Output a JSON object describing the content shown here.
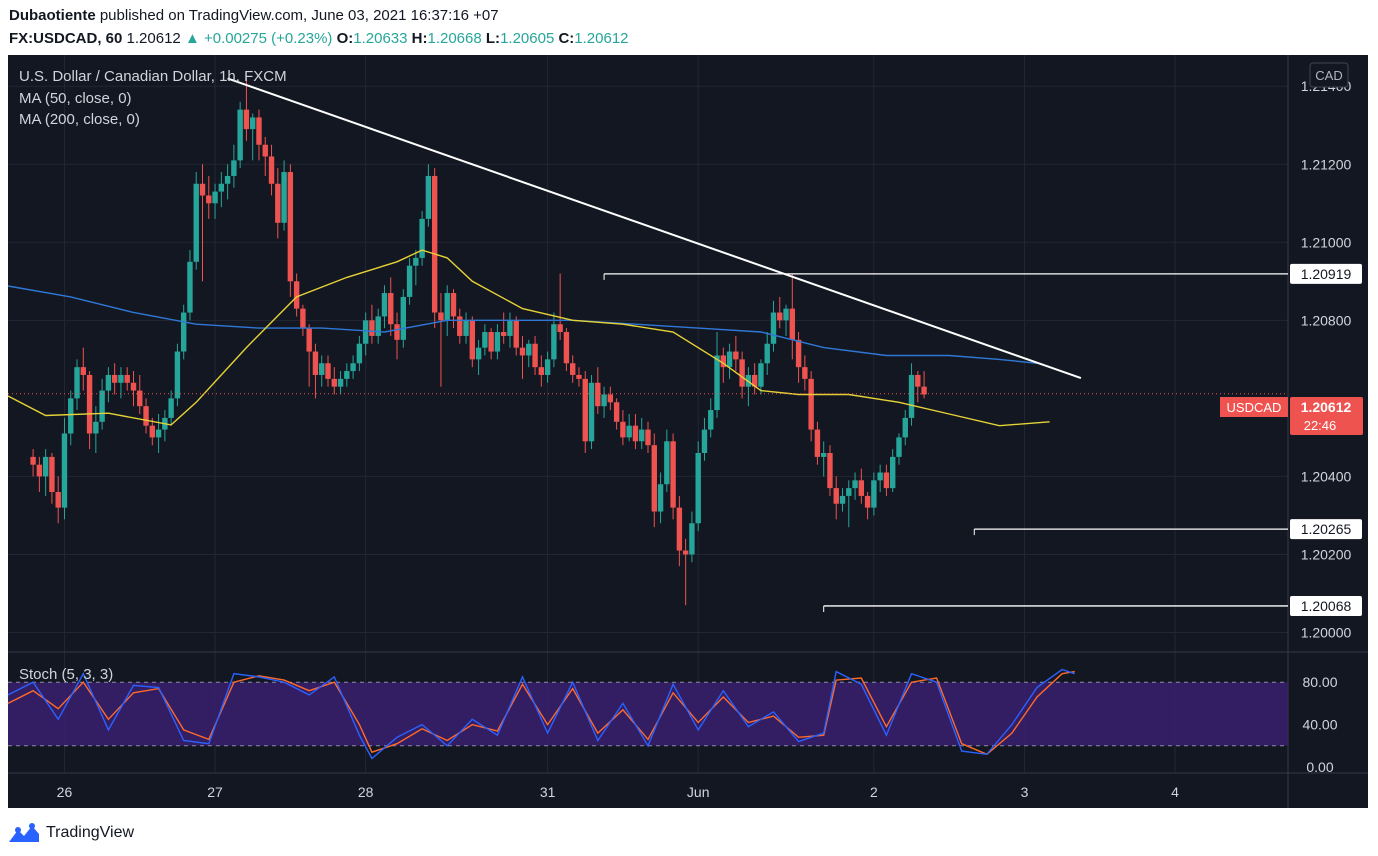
{
  "header": {
    "author": "Dubaotiente",
    "published_text": "published on TradingView.com, June 03, 2021 16:37:16 +07",
    "symbol": "FX:USDCAD, 60",
    "last": "1.20612",
    "change": "+0.00275 (+0.23%)",
    "open_label": "O:",
    "open": "1.20633",
    "high_label": "H:",
    "high": "1.20668",
    "low_label": "L:",
    "low": "1.20605",
    "close_label": "C:",
    "close": "1.20612"
  },
  "legend": {
    "title": "U.S. Dollar / Canadian Dollar, 1h, FXCM",
    "ma50": "MA (50, close, 0)",
    "ma200": "MA (200, close, 0)",
    "currency": "CAD",
    "stoch": "Stoch (5, 3, 3)"
  },
  "price_tag": {
    "symbol": "USDCAD",
    "price": "1.20612",
    "countdown": "22:46"
  },
  "level_labels": [
    "1.20919",
    "1.20265",
    "1.20068"
  ],
  "brand": "TradingView",
  "colors": {
    "background": "#131722",
    "up": "#26a69a",
    "down": "#ef5350",
    "ma50": "#e6d236",
    "ma200": "#2f78d6",
    "trendline": "#ffffff",
    "stoch_k": "#2a62ff",
    "stoch_d": "#ff6a2a",
    "stoch_band": "#3a1f6e"
  },
  "chart_data": {
    "type": "candlestick",
    "title": "U.S. Dollar / Canadian Dollar, 1h, FXCM",
    "y_ticks": [
      "1.21400",
      "1.21200",
      "1.21000",
      "1.20800",
      "1.20400",
      "1.20200",
      "1.20000"
    ],
    "ylim": [
      1.1995,
      1.2148
    ],
    "x_ticks": [
      "26",
      "27",
      "28",
      "31",
      "Jun",
      "2",
      "3",
      "4"
    ],
    "x_tick_positions": [
      5,
      29,
      53,
      82,
      106,
      134,
      158,
      182
    ],
    "x_range": [
      -4,
      200
    ],
    "last_price": 1.20612,
    "candles": [
      [
        1.2045,
        1.2047,
        1.204,
        1.2043
      ],
      [
        1.2043,
        1.2045,
        1.2036,
        1.204
      ],
      [
        1.204,
        1.2047,
        1.2035,
        1.2045
      ],
      [
        1.2045,
        1.2046,
        1.2033,
        1.2036
      ],
      [
        1.2036,
        1.204,
        1.2028,
        1.2032
      ],
      [
        1.2032,
        1.2055,
        1.2029,
        1.2051
      ],
      [
        1.2051,
        1.2062,
        1.2048,
        1.206
      ],
      [
        1.206,
        1.207,
        1.2057,
        1.2068
      ],
      [
        1.2068,
        1.2073,
        1.2062,
        1.2066
      ],
      [
        1.2066,
        1.2067,
        1.2047,
        1.2051
      ],
      [
        1.2051,
        1.2058,
        1.2046,
        1.2054
      ],
      [
        1.2054,
        1.2065,
        1.2052,
        1.2062
      ],
      [
        1.2062,
        1.2068,
        1.2059,
        1.2066
      ],
      [
        1.2066,
        1.2069,
        1.2061,
        1.2064
      ],
      [
        1.2064,
        1.2068,
        1.206,
        1.2066
      ],
      [
        1.2066,
        1.2068,
        1.2062,
        1.2064
      ],
      [
        1.2064,
        1.2067,
        1.2058,
        1.2062
      ],
      [
        1.2062,
        1.2066,
        1.2056,
        1.2058
      ],
      [
        1.2058,
        1.206,
        1.2051,
        1.2053
      ],
      [
        1.2053,
        1.2055,
        1.2048,
        1.205
      ],
      [
        1.205,
        1.2056,
        1.2046,
        1.2052
      ],
      [
        1.2052,
        1.2057,
        1.2049,
        1.2055
      ],
      [
        1.2055,
        1.2062,
        1.2053,
        1.206
      ],
      [
        1.206,
        1.2074,
        1.2058,
        1.2072
      ],
      [
        1.2072,
        1.2084,
        1.207,
        1.2082
      ],
      [
        1.2082,
        1.2098,
        1.208,
        1.2095
      ],
      [
        1.2095,
        1.2118,
        1.2093,
        1.2115
      ],
      [
        1.2115,
        1.212,
        1.209,
        1.2112
      ],
      [
        1.2112,
        1.2117,
        1.2106,
        1.211
      ],
      [
        1.211,
        1.2115,
        1.2106,
        1.2113
      ],
      [
        1.2113,
        1.2118,
        1.2109,
        1.2115
      ],
      [
        1.2115,
        1.212,
        1.2111,
        1.2117
      ],
      [
        1.2117,
        1.2125,
        1.2114,
        1.2121
      ],
      [
        1.2121,
        1.2136,
        1.2119,
        1.2134
      ],
      [
        1.2134,
        1.2142,
        1.2126,
        1.2129
      ],
      [
        1.2129,
        1.2133,
        1.2121,
        1.2132
      ],
      [
        1.2132,
        1.2134,
        1.2121,
        1.2125
      ],
      [
        1.2125,
        1.2127,
        1.2117,
        1.2122
      ],
      [
        1.2122,
        1.2125,
        1.2112,
        1.2115
      ],
      [
        1.2115,
        1.2119,
        1.2101,
        1.2105
      ],
      [
        1.2105,
        1.2121,
        1.2103,
        1.2118
      ],
      [
        1.2118,
        1.212,
        1.2086,
        1.209
      ],
      [
        1.209,
        1.2092,
        1.2081,
        1.2083
      ],
      [
        1.2083,
        1.2084,
        1.2076,
        1.2078
      ],
      [
        1.2078,
        1.2079,
        1.2063,
        1.2072
      ],
      [
        1.2072,
        1.2074,
        1.206,
        1.2066
      ],
      [
        1.2066,
        1.2071,
        1.2063,
        1.2069
      ],
      [
        1.2069,
        1.2071,
        1.2063,
        1.2065
      ],
      [
        1.2065,
        1.2068,
        1.2061,
        1.2063
      ],
      [
        1.2063,
        1.2067,
        1.2061,
        1.2065
      ],
      [
        1.2065,
        1.2069,
        1.2063,
        1.2067
      ],
      [
        1.2067,
        1.2071,
        1.2065,
        1.2069
      ],
      [
        1.2069,
        1.2076,
        1.2067,
        1.2074
      ],
      [
        1.2074,
        1.2082,
        1.2071,
        1.208
      ],
      [
        1.208,
        1.2084,
        1.2074,
        1.2076
      ],
      [
        1.2076,
        1.2083,
        1.2074,
        1.2081
      ],
      [
        1.2081,
        1.2089,
        1.2078,
        1.2087
      ],
      [
        1.2087,
        1.2091,
        1.2076,
        1.2079
      ],
      [
        1.2079,
        1.2082,
        1.207,
        1.2075
      ],
      [
        1.2075,
        1.2088,
        1.2073,
        1.2086
      ],
      [
        1.2086,
        1.2096,
        1.2084,
        1.2094
      ],
      [
        1.2094,
        1.2098,
        1.2089,
        1.2096
      ],
      [
        1.2096,
        1.2108,
        1.2094,
        1.2106
      ],
      [
        1.2106,
        1.212,
        1.2104,
        1.2117
      ],
      [
        1.2117,
        1.2119,
        1.2078,
        1.2082
      ],
      [
        1.2082,
        1.2087,
        1.2063,
        1.208
      ],
      [
        1.208,
        1.2089,
        1.2076,
        1.2087
      ],
      [
        1.2087,
        1.2088,
        1.2078,
        1.2081
      ],
      [
        1.2081,
        1.2083,
        1.2074,
        1.2076
      ],
      [
        1.2076,
        1.2082,
        1.2074,
        1.208
      ],
      [
        1.208,
        1.2081,
        1.2068,
        1.207
      ],
      [
        1.207,
        1.2075,
        1.2066,
        1.2073
      ],
      [
        1.2073,
        1.2079,
        1.2071,
        1.2077
      ],
      [
        1.2077,
        1.2078,
        1.207,
        1.2072
      ],
      [
        1.2072,
        1.2079,
        1.207,
        1.2077
      ],
      [
        1.2077,
        1.2082,
        1.2074,
        1.2076
      ],
      [
        1.2076,
        1.2082,
        1.2073,
        1.208
      ],
      [
        1.208,
        1.2081,
        1.2071,
        1.2073
      ],
      [
        1.2073,
        1.2076,
        1.2065,
        1.2071
      ],
      [
        1.2071,
        1.2075,
        1.2068,
        1.2074
      ],
      [
        1.2074,
        1.2076,
        1.2066,
        1.2068
      ],
      [
        1.2068,
        1.2071,
        1.2063,
        1.2066
      ],
      [
        1.2066,
        1.2072,
        1.2064,
        1.207
      ],
      [
        1.207,
        1.2082,
        1.2068,
        1.2079
      ],
      [
        1.2079,
        1.2092,
        1.2075,
        1.2077
      ],
      [
        1.2077,
        1.2078,
        1.2067,
        1.2069
      ],
      [
        1.2069,
        1.2071,
        1.2064,
        1.2066
      ],
      [
        1.2066,
        1.2068,
        1.2063,
        1.2065
      ],
      [
        1.2065,
        1.2067,
        1.2046,
        1.2049
      ],
      [
        1.2049,
        1.2066,
        1.2047,
        1.2064
      ],
      [
        1.2064,
        1.2068,
        1.2056,
        1.2058
      ],
      [
        1.2058,
        1.2063,
        1.2055,
        1.2061
      ],
      [
        1.2061,
        1.2063,
        1.2057,
        1.2059
      ],
      [
        1.2059,
        1.206,
        1.2052,
        1.2054
      ],
      [
        1.2054,
        1.2057,
        1.2048,
        1.205
      ],
      [
        1.205,
        1.2056,
        1.2049,
        1.2053
      ],
      [
        1.2053,
        1.2056,
        1.2047,
        1.2049
      ],
      [
        1.2049,
        1.2055,
        1.2047,
        1.2052
      ],
      [
        1.2052,
        1.2054,
        1.2046,
        1.2048
      ],
      [
        1.2048,
        1.2051,
        1.2027,
        1.2031
      ],
      [
        1.2031,
        1.2041,
        1.2028,
        1.2038
      ],
      [
        1.2038,
        1.2052,
        1.2036,
        1.2049
      ],
      [
        1.2049,
        1.2051,
        1.2029,
        1.2032
      ],
      [
        1.2032,
        1.2035,
        1.2017,
        1.2021
      ],
      [
        1.2021,
        1.2024,
        1.2007,
        1.202
      ],
      [
        1.202,
        1.2031,
        1.2018,
        1.2028
      ],
      [
        1.2028,
        1.2049,
        1.2026,
        1.2046
      ],
      [
        1.2046,
        1.2055,
        1.2044,
        1.2052
      ],
      [
        1.2052,
        1.206,
        1.205,
        1.2057
      ],
      [
        1.2057,
        1.2077,
        1.2055,
        1.2071
      ],
      [
        1.2071,
        1.2073,
        1.2064,
        1.2068
      ],
      [
        1.2068,
        1.2074,
        1.2065,
        1.2072
      ],
      [
        1.2072,
        1.2076,
        1.2067,
        1.207
      ],
      [
        1.207,
        1.2072,
        1.206,
        1.2063
      ],
      [
        1.2063,
        1.2068,
        1.2058,
        1.2066
      ],
      [
        1.2066,
        1.2069,
        1.2061,
        1.2063
      ],
      [
        1.2063,
        1.207,
        1.2061,
        1.2069
      ],
      [
        1.2069,
        1.2077,
        1.2066,
        1.2074
      ],
      [
        1.2074,
        1.2085,
        1.2072,
        1.2082
      ],
      [
        1.2082,
        1.2086,
        1.2078,
        1.208
      ],
      [
        1.208,
        1.2084,
        1.2076,
        1.2083
      ],
      [
        1.2083,
        1.2092,
        1.207,
        1.2075
      ],
      [
        1.2075,
        1.2077,
        1.2064,
        1.2068
      ],
      [
        1.2068,
        1.2071,
        1.2062,
        1.2065
      ],
      [
        1.2065,
        1.2067,
        1.2049,
        1.2052
      ],
      [
        1.2052,
        1.2054,
        1.2043,
        1.2045
      ],
      [
        1.2045,
        1.2049,
        1.204,
        1.2046
      ],
      [
        1.2046,
        1.2048,
        1.2035,
        1.2037
      ],
      [
        1.2037,
        1.204,
        1.2029,
        1.2033
      ],
      [
        1.2033,
        1.2037,
        1.2031,
        1.2035
      ],
      [
        1.2035,
        1.2039,
        1.2027,
        1.2037
      ],
      [
        1.2037,
        1.2041,
        1.2034,
        1.2039
      ],
      [
        1.2039,
        1.2042,
        1.2033,
        1.2035
      ],
      [
        1.2035,
        1.2036,
        1.2029,
        1.2032
      ],
      [
        1.2032,
        1.2041,
        1.203,
        1.2039
      ],
      [
        1.2039,
        1.2043,
        1.2036,
        1.2041
      ],
      [
        1.2041,
        1.2043,
        1.2035,
        1.2037
      ],
      [
        1.2037,
        1.2047,
        1.2036,
        1.2045
      ],
      [
        1.2045,
        1.2051,
        1.2043,
        1.205
      ],
      [
        1.205,
        1.2057,
        1.2048,
        1.2055
      ],
      [
        1.2055,
        1.2069,
        1.2053,
        1.2066
      ],
      [
        1.2066,
        1.2067,
        1.2059,
        1.2063
      ],
      [
        1.2063,
        1.2067,
        1.206,
        1.2061
      ]
    ],
    "ma50": [
      [
        -4,
        1.20606
      ],
      [
        2,
        1.20556
      ],
      [
        12,
        1.20562
      ],
      [
        22,
        1.20532
      ],
      [
        26,
        1.2059
      ],
      [
        34,
        1.2073
      ],
      [
        42,
        1.2086
      ],
      [
        50,
        1.2091
      ],
      [
        58,
        1.2095
      ],
      [
        62,
        1.2098
      ],
      [
        66,
        1.2096
      ],
      [
        70,
        1.209
      ],
      [
        78,
        1.2083
      ],
      [
        86,
        1.208
      ],
      [
        94,
        1.2079
      ],
      [
        102,
        1.2077
      ],
      [
        110,
        1.2069
      ],
      [
        116,
        1.2062
      ],
      [
        122,
        1.2061
      ],
      [
        130,
        1.2061
      ],
      [
        138,
        1.2059
      ],
      [
        146,
        1.2056
      ],
      [
        154,
        1.2053
      ],
      [
        162,
        1.2054
      ]
    ],
    "ma200": [
      [
        -4,
        1.20888
      ],
      [
        6,
        1.2086
      ],
      [
        16,
        1.2082
      ],
      [
        26,
        1.2079
      ],
      [
        36,
        1.2078
      ],
      [
        46,
        1.2078
      ],
      [
        56,
        1.2077
      ],
      [
        66,
        1.208
      ],
      [
        76,
        1.208
      ],
      [
        86,
        1.208
      ],
      [
        96,
        1.2079
      ],
      [
        106,
        1.2078
      ],
      [
        116,
        1.2077
      ],
      [
        126,
        1.2073
      ],
      [
        136,
        1.2071
      ],
      [
        146,
        1.2071
      ],
      [
        154,
        1.207
      ],
      [
        160,
        1.2069
      ]
    ],
    "trendline": [
      [
        31,
        1.2142
      ],
      [
        167,
        1.20652
      ]
    ],
    "levels": [
      {
        "from": 91,
        "value": 1.20919
      },
      {
        "from": 150,
        "value": 1.20265
      },
      {
        "from": 126,
        "value": 1.20068
      }
    ],
    "stoch_ticks": [
      "80.00",
      "40.00",
      "0.00"
    ],
    "stoch_band": [
      20,
      80
    ],
    "stoch_k": [
      [
        -4,
        68
      ],
      [
        0,
        80
      ],
      [
        4,
        45
      ],
      [
        8,
        88
      ],
      [
        12,
        35
      ],
      [
        16,
        77
      ],
      [
        20,
        75
      ],
      [
        24,
        25
      ],
      [
        28,
        22
      ],
      [
        32,
        88
      ],
      [
        36,
        85
      ],
      [
        40,
        80
      ],
      [
        44,
        68
      ],
      [
        48,
        85
      ],
      [
        52,
        30
      ],
      [
        54,
        8
      ],
      [
        58,
        28
      ],
      [
        62,
        40
      ],
      [
        66,
        20
      ],
      [
        70,
        45
      ],
      [
        74,
        30
      ],
      [
        78,
        85
      ],
      [
        82,
        32
      ],
      [
        86,
        80
      ],
      [
        90,
        25
      ],
      [
        94,
        60
      ],
      [
        98,
        20
      ],
      [
        102,
        78
      ],
      [
        106,
        35
      ],
      [
        110,
        72
      ],
      [
        114,
        38
      ],
      [
        118,
        52
      ],
      [
        122,
        24
      ],
      [
        126,
        32
      ],
      [
        128,
        90
      ],
      [
        132,
        78
      ],
      [
        136,
        30
      ],
      [
        140,
        88
      ],
      [
        144,
        80
      ],
      [
        148,
        15
      ],
      [
        152,
        12
      ],
      [
        156,
        40
      ],
      [
        160,
        75
      ],
      [
        164,
        92
      ],
      [
        166,
        88
      ]
    ],
    "stoch_d": [
      [
        -4,
        60
      ],
      [
        0,
        72
      ],
      [
        4,
        55
      ],
      [
        8,
        80
      ],
      [
        12,
        45
      ],
      [
        16,
        70
      ],
      [
        20,
        74
      ],
      [
        24,
        35
      ],
      [
        28,
        26
      ],
      [
        32,
        80
      ],
      [
        36,
        86
      ],
      [
        40,
        82
      ],
      [
        44,
        72
      ],
      [
        48,
        80
      ],
      [
        52,
        40
      ],
      [
        54,
        14
      ],
      [
        58,
        22
      ],
      [
        62,
        36
      ],
      [
        66,
        25
      ],
      [
        70,
        40
      ],
      [
        74,
        34
      ],
      [
        78,
        78
      ],
      [
        82,
        40
      ],
      [
        86,
        74
      ],
      [
        90,
        32
      ],
      [
        94,
        54
      ],
      [
        98,
        26
      ],
      [
        102,
        70
      ],
      [
        106,
        42
      ],
      [
        110,
        66
      ],
      [
        114,
        42
      ],
      [
        118,
        48
      ],
      [
        122,
        28
      ],
      [
        126,
        30
      ],
      [
        128,
        82
      ],
      [
        132,
        84
      ],
      [
        136,
        38
      ],
      [
        140,
        80
      ],
      [
        144,
        84
      ],
      [
        148,
        22
      ],
      [
        152,
        12
      ],
      [
        156,
        32
      ],
      [
        160,
        66
      ],
      [
        164,
        88
      ],
      [
        166,
        90
      ]
    ]
  }
}
